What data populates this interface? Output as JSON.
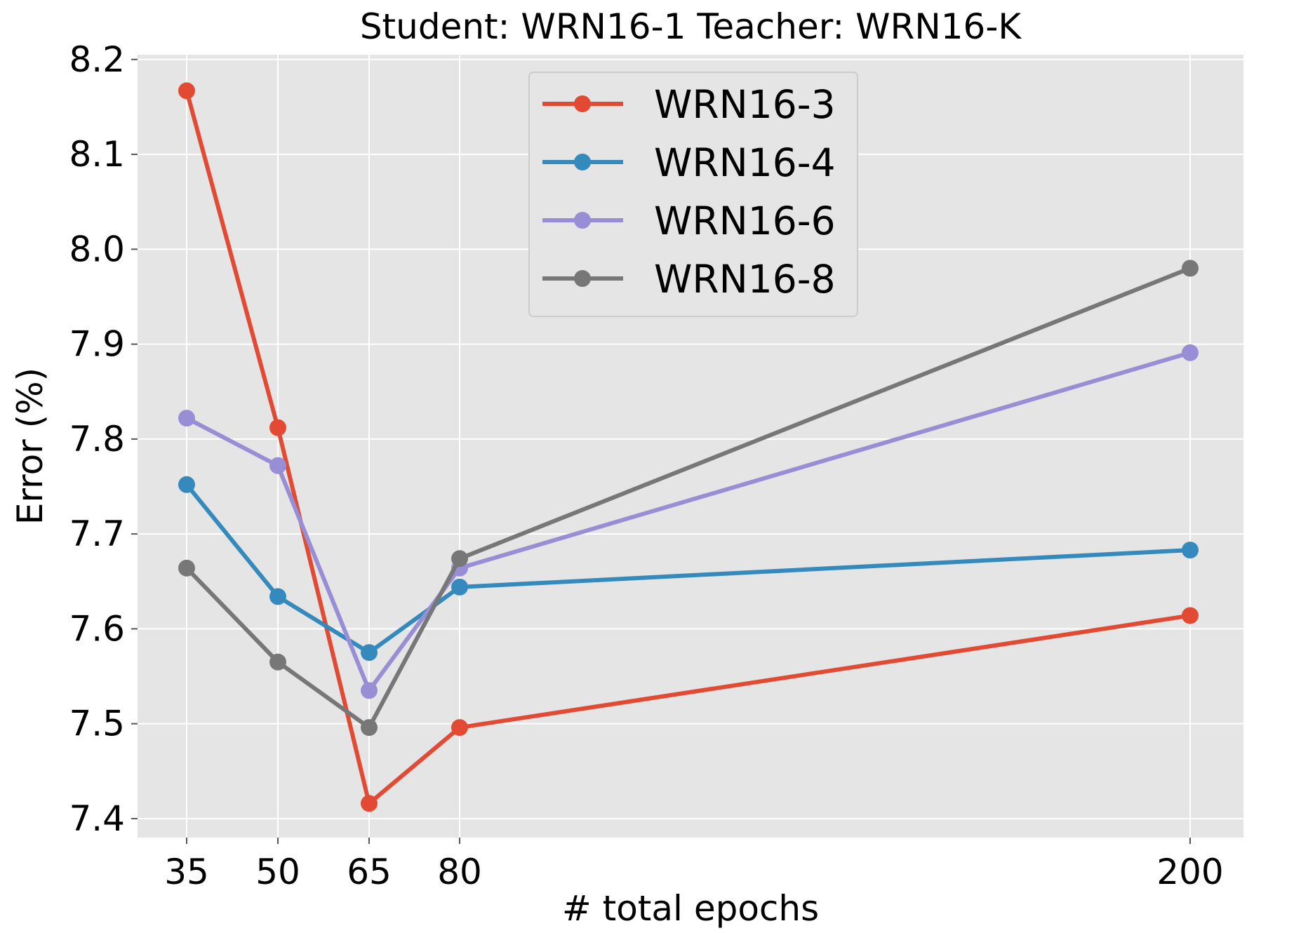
{
  "chart_data": {
    "type": "line",
    "title": "Student: WRN16-1  Teacher: WRN16-K",
    "xlabel": "# total epochs",
    "ylabel": "Error (%)",
    "x": [
      35,
      50,
      65,
      80,
      200
    ],
    "x_tick_labels": [
      "35",
      "50",
      "65",
      "80",
      "200"
    ],
    "y_ticks": [
      7.4,
      7.5,
      7.6,
      7.7,
      7.8,
      7.9,
      8.0,
      8.1,
      8.2
    ],
    "y_tick_labels": [
      "7.4",
      "7.5",
      "7.6",
      "7.7",
      "7.8",
      "7.9",
      "8.0",
      "8.1",
      "8.2"
    ],
    "ylim": [
      7.38,
      8.205
    ],
    "grid": true,
    "legend_position": "top-center",
    "x_scale": "categorical-positions",
    "series": [
      {
        "name": "WRN16-3",
        "color": "#e24a33",
        "values": [
          8.167,
          7.812,
          7.416,
          7.496,
          7.614
        ]
      },
      {
        "name": "WRN16-4",
        "color": "#348abd",
        "values": [
          7.752,
          7.634,
          7.575,
          7.644,
          7.683
        ]
      },
      {
        "name": "WRN16-6",
        "color": "#988ed5",
        "values": [
          7.822,
          7.772,
          7.535,
          7.664,
          7.891
        ]
      },
      {
        "name": "WRN16-8",
        "color": "#777777",
        "values": [
          7.664,
          7.565,
          7.496,
          7.674,
          7.98
        ]
      }
    ]
  }
}
